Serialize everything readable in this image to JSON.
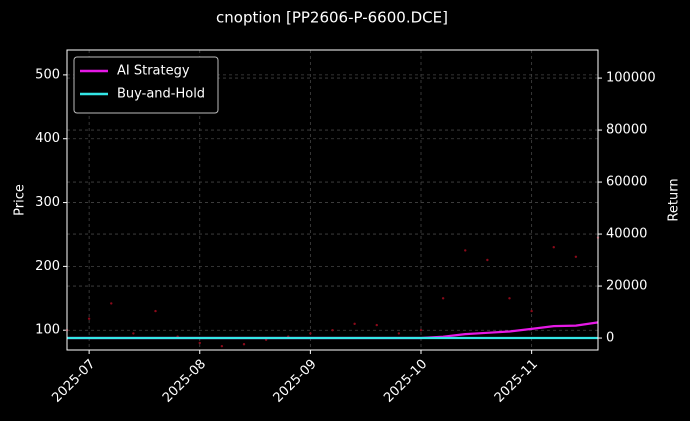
{
  "chart_data": {
    "type": "line",
    "title": "cnoption [PP2606-P-6600.DCE]",
    "ylabel": "Price",
    "y2label": "Return",
    "categories": [
      null,
      "2025-07",
      null,
      null,
      null,
      null,
      "2025-08",
      null,
      null,
      null,
      null,
      "2025-09",
      null,
      null,
      null,
      null,
      "2025-10",
      null,
      null,
      null,
      null,
      "2025-11",
      null,
      null,
      null
    ],
    "ylim": [
      69,
      539
    ],
    "yticks": [
      100,
      200,
      300,
      400,
      500
    ],
    "y2lim": [
      -4600,
      110800
    ],
    "y2ticks": [
      0,
      20000,
      40000,
      60000,
      80000,
      100000
    ],
    "grid": true,
    "legend": "upper-left",
    "series": [
      {
        "style": "scatter",
        "color": "#8b0a1a",
        "values": [
          100,
          118,
          142,
          95,
          130,
          90,
          80,
          75,
          78,
          85,
          90,
          95,
          100,
          110,
          108,
          95,
          100,
          150,
          225,
          210,
          150,
          130,
          230,
          215,
          245
        ]
      },
      {
        "name": "AI Strategy",
        "style": "line",
        "axis": "y2",
        "color": "#e619e6",
        "values": [
          0,
          0,
          0,
          0,
          0,
          0,
          0,
          0,
          0,
          0,
          0,
          0,
          0,
          0,
          0,
          0,
          0,
          500,
          1500,
          2000,
          2500,
          3500,
          4600,
          4800,
          6000
        ]
      },
      {
        "name": "Buy-and-Hold",
        "style": "line",
        "axis": "y2",
        "color": "#33e6e6",
        "values": [
          0,
          0,
          0,
          0,
          0,
          0,
          0,
          0,
          0,
          0,
          0,
          0,
          0,
          0,
          0,
          0,
          0,
          0,
          0,
          0,
          0,
          0,
          0,
          0,
          0
        ]
      }
    ]
  }
}
